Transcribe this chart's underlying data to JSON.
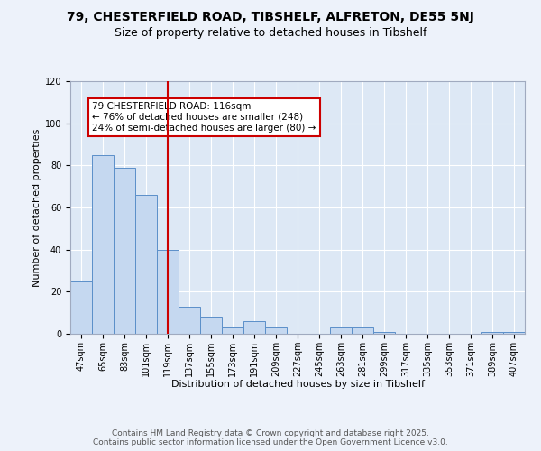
{
  "title_line1": "79, CHESTERFIELD ROAD, TIBSHELF, ALFRETON, DE55 5NJ",
  "title_line2": "Size of property relative to detached houses in Tibshelf",
  "xlabel": "Distribution of detached houses by size in Tibshelf",
  "ylabel": "Number of detached properties",
  "bins": [
    "47sqm",
    "65sqm",
    "83sqm",
    "101sqm",
    "119sqm",
    "137sqm",
    "155sqm",
    "173sqm",
    "191sqm",
    "209sqm",
    "227sqm",
    "245sqm",
    "263sqm",
    "281sqm",
    "299sqm",
    "317sqm",
    "335sqm",
    "353sqm",
    "371sqm",
    "389sqm",
    "407sqm"
  ],
  "values": [
    25,
    85,
    79,
    66,
    40,
    13,
    8,
    3,
    6,
    3,
    0,
    0,
    3,
    3,
    1,
    0,
    0,
    0,
    0,
    1,
    1
  ],
  "bar_color": "#c5d8f0",
  "bar_edge_color": "#5b8fc9",
  "bar_width": 1.0,
  "red_line_index": 4,
  "red_line_color": "#cc0000",
  "annotation_text": "79 CHESTERFIELD ROAD: 116sqm\n← 76% of detached houses are smaller (248)\n24% of semi-detached houses are larger (80) →",
  "annotation_box_color": "#ffffff",
  "annotation_box_edge_color": "#cc0000",
  "ylim": [
    0,
    120
  ],
  "yticks": [
    0,
    20,
    40,
    60,
    80,
    100,
    120
  ],
  "background_color": "#dde8f5",
  "fig_background_color": "#edf2fa",
  "grid_color": "#ffffff",
  "footer_text": "Contains HM Land Registry data © Crown copyright and database right 2025.\nContains public sector information licensed under the Open Government Licence v3.0.",
  "title_fontsize": 10,
  "subtitle_fontsize": 9,
  "axis_label_fontsize": 8,
  "tick_fontsize": 7,
  "annotation_fontsize": 7.5,
  "footer_fontsize": 6.5
}
